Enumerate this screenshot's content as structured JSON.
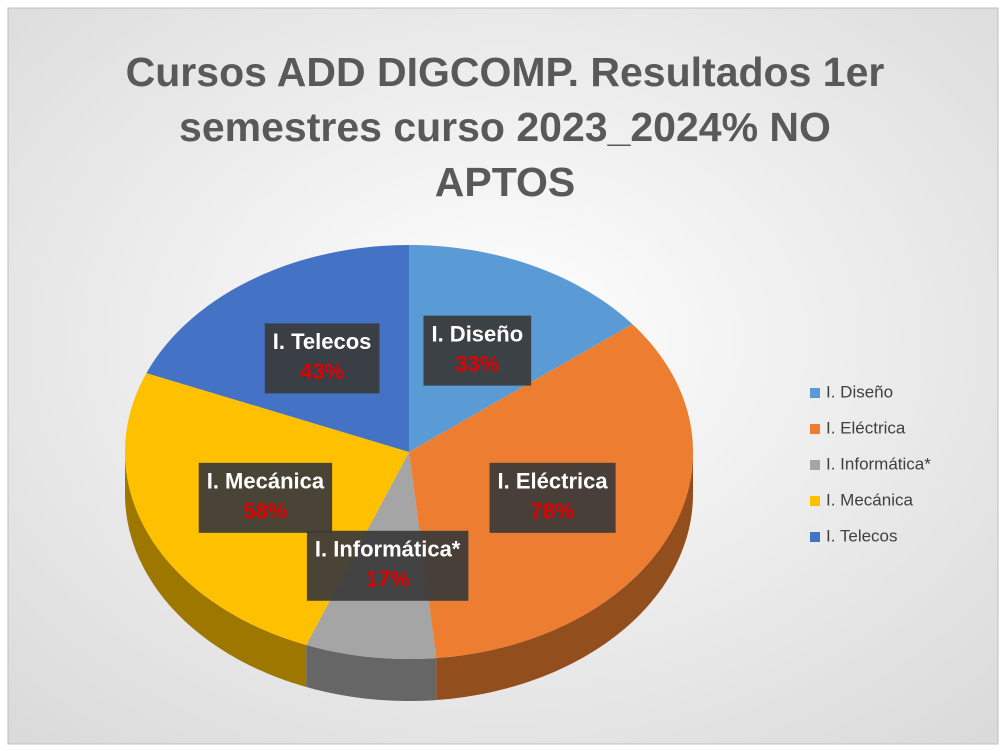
{
  "chart_data": {
    "type": "pie3d",
    "title": "Cursos ADD DIGCOMP. Resultados 1er semestres curso 2023_2024% NO APTOS",
    "categories": [
      "I. Diseño",
      "I. Eléctrica",
      "I. Informática*",
      "I. Mecánica",
      "I. Telecos"
    ],
    "values": [
      33,
      78,
      17,
      58,
      43
    ],
    "value_labels": [
      "33%",
      "78%",
      "17%",
      "58%",
      "43%"
    ],
    "colors": [
      "#5b9bd5",
      "#ed7d31",
      "#a5a5a5",
      "#ffc000",
      "#4472c4"
    ],
    "legend": "right"
  }
}
